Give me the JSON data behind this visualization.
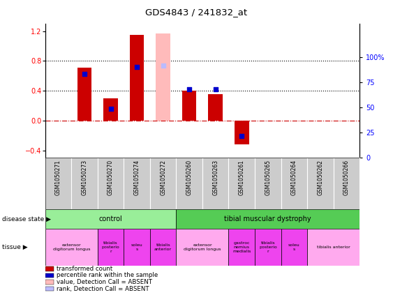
{
  "title": "GDS4843 / 241832_at",
  "samples": [
    "GSM1050271",
    "GSM1050273",
    "GSM1050270",
    "GSM1050274",
    "GSM1050272",
    "GSM1050260",
    "GSM1050263",
    "GSM1050261",
    "GSM1050265",
    "GSM1050264",
    "GSM1050262",
    "GSM1050266"
  ],
  "bar_values": [
    0.0,
    0.71,
    0.3,
    1.15,
    1.17,
    0.4,
    0.35,
    -0.32,
    0.0,
    0.0,
    0.0,
    0.0
  ],
  "dot_values_pct": [
    null,
    83,
    49,
    90,
    92,
    68,
    68,
    22,
    null,
    null,
    null,
    null
  ],
  "bar_color": "#cc0000",
  "dot_color": "#0000cc",
  "absent_bar_color": "#ffbbbb",
  "absent_dot_color": "#bbbbff",
  "absent_bars": [
    0,
    4,
    8,
    9,
    10,
    11
  ],
  "absent_dots": [
    4
  ],
  "ylim_left": [
    -0.5,
    1.3
  ],
  "ylim_right": [
    0,
    133.33
  ],
  "yticks_left": [
    -0.4,
    0.0,
    0.4,
    0.8,
    1.2
  ],
  "yticks_right": [
    0,
    25,
    50,
    75,
    100
  ],
  "ytick_labels_right": [
    "0",
    "25",
    "50",
    "75",
    "100%"
  ],
  "hlines_dotted": [
    0.4,
    0.8
  ],
  "zero_line_color": "#cc0000",
  "disease_state_groups": [
    {
      "label": "control",
      "start": 0,
      "end": 5,
      "color": "#99ee99"
    },
    {
      "label": "tibial muscular dystrophy",
      "start": 5,
      "end": 12,
      "color": "#55cc55"
    }
  ],
  "tissue_groups": [
    {
      "label": "extensor\ndigitorum longus",
      "start": 0,
      "end": 2,
      "color": "#ffaaee"
    },
    {
      "label": "tibialis\nposterio\nr",
      "start": 2,
      "end": 3,
      "color": "#ee44ee"
    },
    {
      "label": "soleu\ns",
      "start": 3,
      "end": 4,
      "color": "#ee44ee"
    },
    {
      "label": "tibialis\nanterior",
      "start": 4,
      "end": 5,
      "color": "#ee44ee"
    },
    {
      "label": "extensor\ndigitorum longus",
      "start": 5,
      "end": 7,
      "color": "#ffaaee"
    },
    {
      "label": "gastroc\nnemius\nmedialis",
      "start": 7,
      "end": 8,
      "color": "#ee44ee"
    },
    {
      "label": "tibialis\nposterio\nr",
      "start": 8,
      "end": 9,
      "color": "#ee44ee"
    },
    {
      "label": "soleu\ns",
      "start": 9,
      "end": 10,
      "color": "#ee44ee"
    },
    {
      "label": "tibialis anterior",
      "start": 10,
      "end": 12,
      "color": "#ffaaee"
    }
  ],
  "legend_items": [
    {
      "color": "#cc0000",
      "label": "transformed count"
    },
    {
      "color": "#0000cc",
      "label": "percentile rank within the sample"
    },
    {
      "color": "#ffbbbb",
      "label": "value, Detection Call = ABSENT"
    },
    {
      "color": "#bbbbff",
      "label": "rank, Detection Call = ABSENT"
    }
  ],
  "bar_width": 0.55,
  "dot_size": 25,
  "background_color": "#ffffff"
}
